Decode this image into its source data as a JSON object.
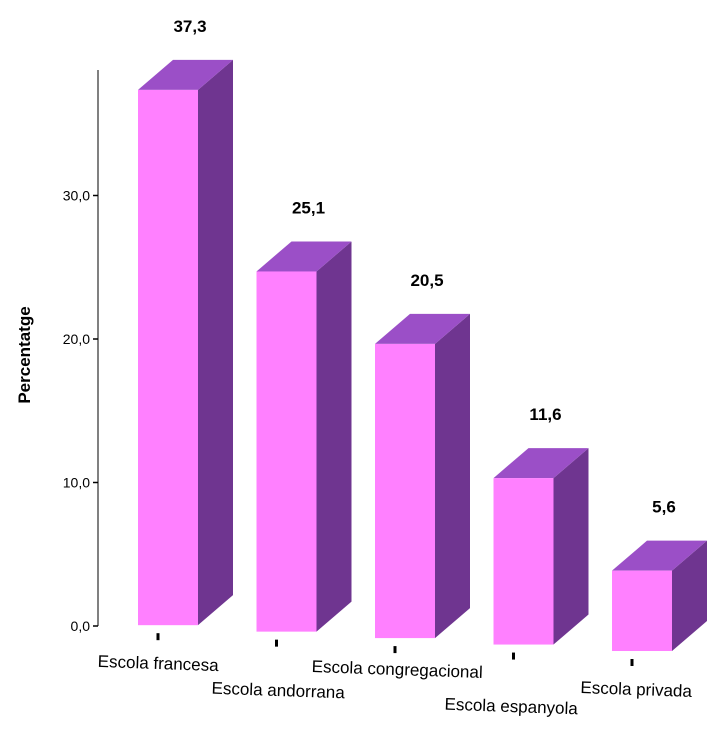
{
  "chart_data": {
    "type": "bar",
    "style": "3d",
    "title": "",
    "xlabel": "",
    "ylabel": "Percentatge",
    "ylim": [
      0,
      37.3
    ],
    "yticks": [
      "0,0",
      "10,0",
      "20,0",
      "30,0"
    ],
    "categories": [
      "Escola francesa",
      "Escola andorrana",
      "Escola congregacional",
      "Escola espanyola",
      "Escola privada"
    ],
    "values": [
      37.3,
      25.1,
      20.5,
      11.6,
      5.6
    ],
    "value_labels": [
      "37,3",
      "25,1",
      "20,5",
      "11,6",
      "5,6"
    ],
    "grid": false,
    "legend": "none",
    "colors": {
      "front": "#ff80ff",
      "top": "#9b4fc7",
      "side": "#6f3590"
    }
  }
}
